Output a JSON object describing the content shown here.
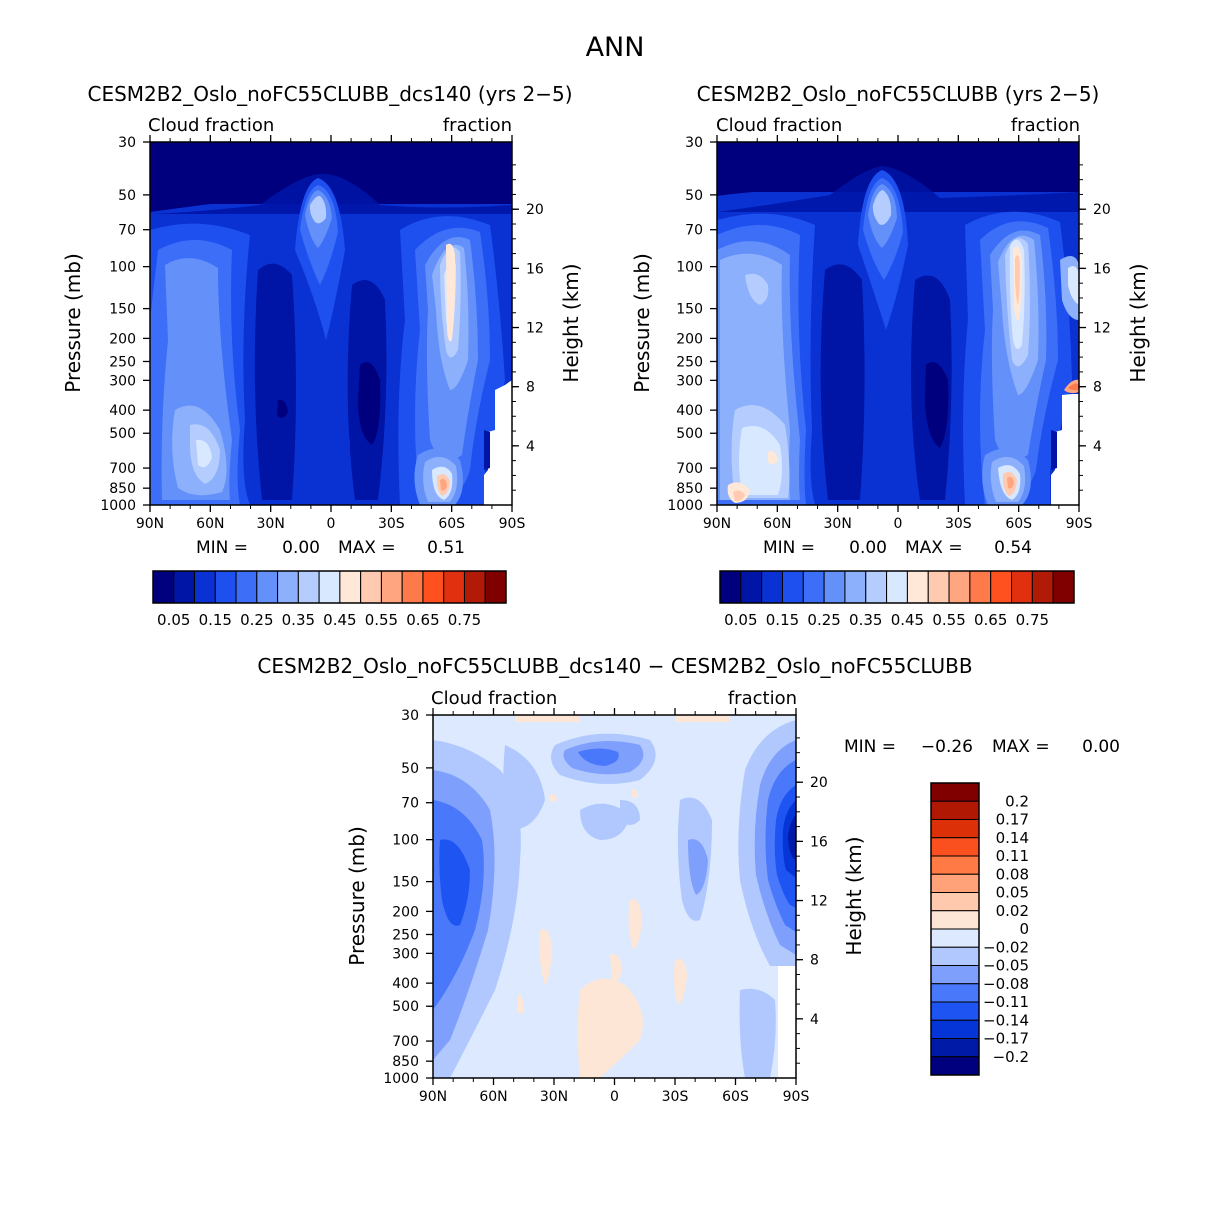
{
  "page_title": "ANN",
  "chart_data": [
    {
      "type": "heatmap",
      "title": "CESM2B2_Oslo_noFC55CLUBB_dcs140 (yrs 2−5)",
      "left_label": "Cloud fraction",
      "right_label": "fraction",
      "ylabel": "Pressure (mb)",
      "ylabel_right": "Height (km)",
      "xticks": [
        "90N",
        "60N",
        "30N",
        "0",
        "30S",
        "60S",
        "90S"
      ],
      "yticks": [
        30,
        50,
        70,
        100,
        150,
        200,
        250,
        300,
        400,
        500,
        700,
        850,
        1000
      ],
      "yticks_right": [
        20,
        16,
        12,
        8,
        4
      ],
      "ylim": [
        30,
        1000
      ],
      "min_label": "MIN =",
      "min_value": "0.00",
      "max_label": "MAX =",
      "max_value": "0.51",
      "colorbar_levels": [
        0.05,
        0.1,
        0.15,
        0.2,
        0.25,
        0.3,
        0.35,
        0.4,
        0.45,
        0.5,
        0.55,
        0.6,
        0.65,
        0.7,
        0.75
      ],
      "colorbar_labels": [
        "0.05",
        "0.15",
        "0.25",
        "0.35",
        "0.45",
        "0.55",
        "0.65",
        "0.75"
      ]
    },
    {
      "type": "heatmap",
      "title": "CESM2B2_Oslo_noFC55CLUBB (yrs 2−5)",
      "left_label": "Cloud fraction",
      "right_label": "fraction",
      "ylabel": "Pressure (mb)",
      "ylabel_right": "Height (km)",
      "xticks": [
        "90N",
        "60N",
        "30N",
        "0",
        "30S",
        "60S",
        "90S"
      ],
      "yticks": [
        30,
        50,
        70,
        100,
        150,
        200,
        250,
        300,
        400,
        500,
        700,
        850,
        1000
      ],
      "yticks_right": [
        20,
        16,
        12,
        8,
        4
      ],
      "ylim": [
        30,
        1000
      ],
      "min_label": "MIN =",
      "min_value": "0.00",
      "max_label": "MAX =",
      "max_value": "0.54",
      "colorbar_levels": [
        0.05,
        0.1,
        0.15,
        0.2,
        0.25,
        0.3,
        0.35,
        0.4,
        0.45,
        0.5,
        0.55,
        0.6,
        0.65,
        0.7,
        0.75
      ],
      "colorbar_labels": [
        "0.05",
        "0.15",
        "0.25",
        "0.35",
        "0.45",
        "0.55",
        "0.65",
        "0.75"
      ]
    },
    {
      "type": "heatmap",
      "title": "CESM2B2_Oslo_noFC55CLUBB_dcs140 − CESM2B2_Oslo_noFC55CLUBB",
      "left_label": "Cloud fraction",
      "right_label": "fraction",
      "ylabel": "Pressure (mb)",
      "ylabel_right": "Height (km)",
      "xticks": [
        "90N",
        "60N",
        "30N",
        "0",
        "30S",
        "60S",
        "90S"
      ],
      "yticks": [
        30,
        50,
        70,
        100,
        150,
        200,
        250,
        300,
        400,
        500,
        700,
        850,
        1000
      ],
      "yticks_right": [
        20,
        16,
        12,
        8,
        4
      ],
      "ylim": [
        30,
        1000
      ],
      "min_label": "MIN =",
      "min_value": "−0.26",
      "max_label": "MAX =",
      "max_value": "0.00",
      "colorbar_levels": [
        -0.2,
        -0.17,
        -0.14,
        -0.11,
        -0.08,
        -0.05,
        -0.02,
        0,
        0.02,
        0.05,
        0.08,
        0.11,
        0.14,
        0.17,
        0.2
      ],
      "colorbar_labels": [
        "0.2",
        "0.17",
        "0.14",
        "0.11",
        "0.08",
        "0.05",
        "0.02",
        "0",
        "−0.02",
        "−0.05",
        "−0.08",
        "−0.11",
        "−0.14",
        "−0.17",
        "−0.2"
      ]
    }
  ],
  "colors": {
    "seq": [
      "#00007f",
      "#0014a6",
      "#0a32d2",
      "#1e50f0",
      "#3c6ef8",
      "#6490fa",
      "#8cb0fc",
      "#b4ccfe",
      "#d8e8ff",
      "#ffe8d8",
      "#ffcab0",
      "#ffa680",
      "#ff7a4a",
      "#ff5020",
      "#e03010",
      "#b21a08",
      "#800000"
    ],
    "div": [
      "#00007f",
      "#001aa8",
      "#0535d6",
      "#1e55f2",
      "#4a78fa",
      "#7ea0fc",
      "#b0c8fe",
      "#dce9fe",
      "#fde6d6",
      "#ffc9ad",
      "#ffa27a",
      "#ff7a45",
      "#fa5020",
      "#dc3008",
      "#b01804",
      "#800000"
    ]
  }
}
